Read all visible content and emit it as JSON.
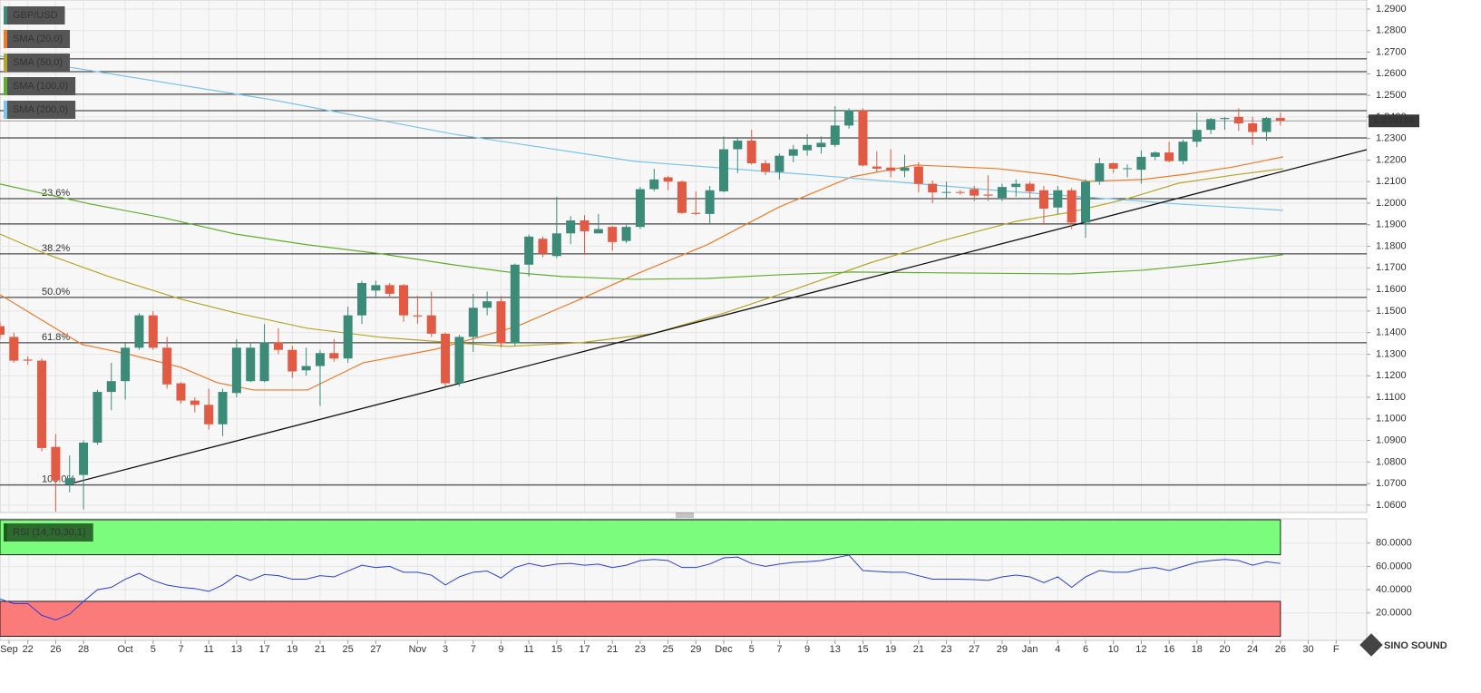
{
  "chart_data": {
    "type": "candlestick",
    "symbol": "GBP/USD",
    "up_color": "#3b8b78",
    "down_color": "#e15a43",
    "xlim": [
      0,
      98.2
    ],
    "ylim": [
      1.0566,
      1.2942
    ],
    "grid": true,
    "legend": "top-left",
    "xticks": [
      {
        "value": 0.65,
        "label": "Sep"
      },
      {
        "value": 2,
        "label": "22"
      },
      {
        "value": 4,
        "label": "26"
      },
      {
        "value": 6,
        "label": "28"
      },
      {
        "value": 9,
        "label": "Oct"
      },
      {
        "value": 11,
        "label": "5"
      },
      {
        "value": 13,
        "label": "7"
      },
      {
        "value": 15,
        "label": "11"
      },
      {
        "value": 17,
        "label": "13"
      },
      {
        "value": 19,
        "label": "17"
      },
      {
        "value": 21,
        "label": "19"
      },
      {
        "value": 23,
        "label": "21"
      },
      {
        "value": 25,
        "label": "25"
      },
      {
        "value": 27,
        "label": "27"
      },
      {
        "value": 30,
        "label": "Nov"
      },
      {
        "value": 32,
        "label": "3"
      },
      {
        "value": 34,
        "label": "7"
      },
      {
        "value": 36,
        "label": "9"
      },
      {
        "value": 38,
        "label": "11"
      },
      {
        "value": 40,
        "label": "15"
      },
      {
        "value": 42,
        "label": "17"
      },
      {
        "value": 44,
        "label": "21"
      },
      {
        "value": 46,
        "label": "23"
      },
      {
        "value": 48,
        "label": "25"
      },
      {
        "value": 50,
        "label": "29"
      },
      {
        "value": 52,
        "label": "Dec"
      },
      {
        "value": 54,
        "label": "5"
      },
      {
        "value": 56,
        "label": "7"
      },
      {
        "value": 58,
        "label": "9"
      },
      {
        "value": 60,
        "label": "13"
      },
      {
        "value": 62,
        "label": "15"
      },
      {
        "value": 64,
        "label": "19"
      },
      {
        "value": 66,
        "label": "21"
      },
      {
        "value": 68,
        "label": "23"
      },
      {
        "value": 70,
        "label": "27"
      },
      {
        "value": 72,
        "label": "29"
      },
      {
        "value": 74,
        "label": "Jan"
      },
      {
        "value": 76,
        "label": "4"
      },
      {
        "value": 78,
        "label": "6"
      },
      {
        "value": 80,
        "label": "10"
      },
      {
        "value": 82,
        "label": "12"
      },
      {
        "value": 84,
        "label": "16"
      },
      {
        "value": 86,
        "label": "18"
      },
      {
        "value": 88,
        "label": "20"
      },
      {
        "value": 90,
        "label": "24"
      },
      {
        "value": 92,
        "label": "26"
      },
      {
        "value": 94,
        "label": "30"
      },
      {
        "value": 96,
        "label": "F"
      }
    ],
    "yticks": [
      {
        "value": 1.06,
        "label": "1.0600"
      },
      {
        "value": 1.07,
        "label": "1.0700"
      },
      {
        "value": 1.08,
        "label": "1.0800"
      },
      {
        "value": 1.09,
        "label": "1.0900"
      },
      {
        "value": 1.1,
        "label": "1.1000"
      },
      {
        "value": 1.11,
        "label": "1.1100"
      },
      {
        "value": 1.12,
        "label": "1.1200"
      },
      {
        "value": 1.13,
        "label": "1.1300"
      },
      {
        "value": 1.14,
        "label": "1.1400"
      },
      {
        "value": 1.15,
        "label": "1.1500"
      },
      {
        "value": 1.16,
        "label": "1.1600"
      },
      {
        "value": 1.17,
        "label": "1.1700"
      },
      {
        "value": 1.18,
        "label": "1.1800"
      },
      {
        "value": 1.19,
        "label": "1.1900"
      },
      {
        "value": 1.2,
        "label": "1.2000"
      },
      {
        "value": 1.21,
        "label": "1.2100"
      },
      {
        "value": 1.22,
        "label": "1.2200"
      },
      {
        "value": 1.23,
        "label": "1.2300"
      },
      {
        "value": 1.24,
        "label": "1.2400"
      },
      {
        "value": 1.25,
        "label": "1.2500"
      },
      {
        "value": 1.26,
        "label": "1.2600"
      },
      {
        "value": 1.27,
        "label": "1.2700"
      },
      {
        "value": 1.28,
        "label": "1.2800"
      },
      {
        "value": 1.29,
        "label": "1.2900"
      }
    ],
    "candles": {
      "open": [
        1.143,
        1.138,
        1.1275,
        1.127,
        1.087,
        1.0695,
        1.074,
        1.089,
        1.1125,
        1.1175,
        1.133,
        1.148,
        1.133,
        1.1165,
        1.1085,
        1.1065,
        1.0975,
        1.112,
        1.1175,
        1.1175,
        1.1355,
        1.132,
        1.1225,
        1.1245,
        1.1305,
        1.128,
        1.148,
        1.1595,
        1.162,
        1.162,
        1.148,
        1.148,
        1.1395,
        1.1165,
        1.138,
        1.1515,
        1.1545,
        1.135,
        1.1715,
        1.1835,
        1.1755,
        1.186,
        1.192,
        1.186,
        1.189,
        1.1825,
        1.189,
        1.2065,
        1.212,
        1.21,
        1.1955,
        1.195,
        1.2055,
        1.225,
        1.229,
        1.2185,
        1.2145,
        1.222,
        1.2245,
        1.226,
        1.227,
        1.236,
        1.243,
        1.217,
        1.2165,
        1.215,
        1.217,
        1.209,
        1.205,
        1.2052,
        1.2065,
        1.204,
        1.2025,
        1.2075,
        1.209,
        1.206,
        1.198,
        1.206,
        1.191,
        1.21,
        1.2185,
        1.216,
        1.2155,
        1.2215,
        1.2235,
        1.2195,
        1.2285,
        1.234,
        1.239,
        1.24,
        1.237,
        1.233,
        1.2395
      ],
      "high": [
        1.145,
        1.14,
        1.129,
        1.128,
        1.093,
        1.083,
        1.09,
        1.1135,
        1.126,
        1.135,
        1.149,
        1.15,
        1.138,
        1.117,
        1.11,
        1.114,
        1.114,
        1.137,
        1.135,
        1.144,
        1.142,
        1.134,
        1.133,
        1.132,
        1.137,
        1.152,
        1.164,
        1.164,
        1.163,
        1.1625,
        1.157,
        1.159,
        1.14,
        1.139,
        1.158,
        1.159,
        1.157,
        1.172,
        1.1855,
        1.1845,
        1.203,
        1.194,
        1.1945,
        1.195,
        1.1895,
        1.19,
        1.2075,
        1.216,
        1.2125,
        1.2105,
        1.2055,
        1.208,
        1.231,
        1.23,
        1.234,
        1.22,
        1.223,
        1.227,
        1.232,
        1.231,
        1.245,
        1.244,
        1.244,
        1.224,
        1.225,
        1.2225,
        1.219,
        1.2105,
        1.21,
        1.206,
        1.208,
        1.213,
        1.209,
        1.211,
        1.21,
        1.208,
        1.208,
        1.207,
        1.211,
        1.221,
        1.219,
        1.218,
        1.2245,
        1.224,
        1.2285,
        1.2295,
        1.242,
        1.2395,
        1.24,
        1.244,
        1.24,
        1.24,
        1.242
      ],
      "low": [
        1.137,
        1.126,
        1.125,
        1.085,
        1.057,
        1.066,
        1.058,
        1.088,
        1.104,
        1.109,
        1.132,
        1.132,
        1.114,
        1.107,
        1.103,
        1.095,
        1.092,
        1.11,
        1.117,
        1.117,
        1.13,
        1.119,
        1.12,
        1.106,
        1.1265,
        1.126,
        1.144,
        1.156,
        1.156,
        1.145,
        1.144,
        1.138,
        1.115,
        1.115,
        1.131,
        1.148,
        1.133,
        1.134,
        1.166,
        1.175,
        1.1745,
        1.181,
        1.176,
        1.186,
        1.178,
        1.1815,
        1.188,
        1.2055,
        1.206,
        1.195,
        1.1945,
        1.19,
        1.205,
        1.214,
        1.218,
        1.213,
        1.211,
        1.219,
        1.222,
        1.223,
        1.226,
        1.2345,
        1.217,
        1.2145,
        1.212,
        1.212,
        1.205,
        1.2,
        1.202,
        1.204,
        1.201,
        1.201,
        1.201,
        1.203,
        1.202,
        1.19,
        1.195,
        1.188,
        1.184,
        1.2085,
        1.214,
        1.212,
        1.209,
        1.22,
        1.219,
        1.218,
        1.226,
        1.232,
        1.234,
        1.2335,
        1.227,
        1.229,
        1.236
      ],
      "close": [
        1.139,
        1.127,
        1.127,
        1.0865,
        1.0715,
        1.0725,
        1.089,
        1.1125,
        1.1175,
        1.133,
        1.148,
        1.133,
        1.116,
        1.1085,
        1.1065,
        1.0975,
        1.1125,
        1.133,
        1.133,
        1.1355,
        1.132,
        1.122,
        1.1245,
        1.1305,
        1.128,
        1.148,
        1.163,
        1.162,
        1.158,
        1.148,
        1.1475,
        1.1395,
        1.1165,
        1.138,
        1.1515,
        1.1545,
        1.135,
        1.1715,
        1.1845,
        1.1765,
        1.186,
        1.192,
        1.187,
        1.188,
        1.182,
        1.189,
        1.2065,
        1.211,
        1.21,
        1.1955,
        1.195,
        1.206,
        1.225,
        1.229,
        1.2185,
        1.2145,
        1.222,
        1.225,
        1.227,
        1.228,
        1.236,
        1.243,
        1.2175,
        1.216,
        1.215,
        1.2165,
        1.209,
        1.205,
        1.2052,
        1.205,
        1.2035,
        1.2035,
        1.2075,
        1.209,
        1.2055,
        1.1975,
        1.206,
        1.191,
        1.21,
        1.2185,
        1.216,
        1.2162,
        1.2215,
        1.2235,
        1.2195,
        1.2285,
        1.234,
        1.239,
        1.2395,
        1.237,
        1.233,
        1.2395,
        1.2382
      ]
    },
    "series": [
      {
        "name": "SMA (20,0)",
        "color": "#ef7a2a",
        "x": [
          0,
          5.9,
          9.1,
          13,
          15.6,
          18.2,
          22.1,
          26.1,
          31.3,
          37.1,
          41.7,
          45.6,
          50.8,
          56,
          61.2,
          65.8,
          71.7,
          75.6,
          78.2,
          82.1,
          85.3,
          88.6,
          92.2
        ],
        "values": [
          1.1576,
          1.1345,
          1.1302,
          1.1239,
          1.1168,
          1.1134,
          1.1134,
          1.126,
          1.1323,
          1.1428,
          1.1555,
          1.1668,
          1.1807,
          1.1983,
          1.2122,
          1.2177,
          1.216,
          1.2131,
          1.2101,
          1.211,
          1.2135,
          1.2168,
          1.2215
        ]
      },
      {
        "name": "SMA (50,0)",
        "color": "#b5a62a",
        "x": [
          0,
          3.3,
          7.8,
          13,
          16.9,
          22.1,
          27.4,
          32.6,
          36.5,
          41.7,
          46.9,
          52.1,
          57.3,
          62.5,
          67.8,
          73,
          76.9,
          80.8,
          84.7,
          88.6,
          92.2
        ],
        "values": [
          1.1857,
          1.1765,
          1.166,
          1.1555,
          1.1492,
          1.142,
          1.1378,
          1.1353,
          1.1336,
          1.1353,
          1.1395,
          1.1492,
          1.1605,
          1.1723,
          1.1828,
          1.1916,
          1.1958,
          1.2017,
          1.2093,
          1.213,
          1.216
        ]
      },
      {
        "name": "SMA (100,0)",
        "color": "#5fae2e",
        "x": [
          0,
          6.5,
          11.7,
          16.9,
          22.1,
          27.4,
          32.6,
          36.5,
          40.4,
          45.6,
          50.8,
          56,
          61.2,
          67.8,
          76.9,
          82.1,
          87.3,
          92.2
        ],
        "values": [
          1.2089,
          1.1996,
          1.1933,
          1.1857,
          1.1807,
          1.1765,
          1.1714,
          1.1681,
          1.166,
          1.1647,
          1.1651,
          1.1668,
          1.1681,
          1.1677,
          1.1672,
          1.1689,
          1.1723,
          1.1761
        ]
      },
      {
        "name": "SMA (200,0)",
        "color": "#7cc3ec",
        "x": [
          0,
          19.5,
          32.6,
          45.6,
          58.6,
          71.7,
          84.7,
          92.2
        ],
        "values": [
          1.2682,
          1.248,
          1.232,
          1.2194,
          1.213,
          1.2059,
          1.1996,
          1.1967
        ]
      }
    ],
    "trendline": {
      "color": "#111111",
      "x": [
        4.9,
        98.2
      ],
      "values": [
        1.0697,
        1.2248
      ]
    },
    "levels": [
      1.1904,
      1.2303,
      1.2429,
      1.2505,
      1.261,
      1.2669
    ],
    "fib_levels": [
      {
        "value": 1.2021,
        "label": "23.6%"
      },
      {
        "value": 1.1765,
        "label": "38.2%"
      },
      {
        "value": 1.1563,
        "label": "50.0%"
      },
      {
        "value": 1.1353,
        "label": "61.8%"
      },
      {
        "value": 1.0693,
        "label": "100.0%"
      }
    ],
    "last_price": {
      "value": 1.23816,
      "label": "1.238160"
    },
    "rsi": {
      "name": "RSI (14,70,30,1)",
      "color": "#2a3fd6",
      "ylim": [
        0,
        100
      ],
      "yticks": [
        {
          "value": 20,
          "label": "20.0000"
        },
        {
          "value": 40,
          "label": "40.0000"
        },
        {
          "value": 60,
          "label": "60.0000"
        },
        {
          "value": 80,
          "label": "80.0000"
        }
      ],
      "overbought": 70,
      "oversold": 30,
      "values": [
        32,
        28,
        28,
        18,
        14,
        19,
        30,
        40,
        42,
        49,
        54,
        48,
        44,
        42,
        41,
        38.5,
        44,
        52.5,
        48,
        53,
        52,
        49,
        49,
        52,
        51,
        56,
        61,
        59,
        60,
        55,
        55,
        52.5,
        44,
        51,
        55,
        56,
        50,
        59,
        62.5,
        60,
        62,
        62.5,
        61,
        62,
        59,
        61,
        65,
        66,
        65,
        59,
        59,
        62,
        67.3,
        68,
        62.5,
        60,
        62,
        63.4,
        64,
        65,
        67.3,
        69.6,
        56.4,
        55.6,
        55,
        55,
        52,
        49,
        49,
        49,
        48.6,
        48,
        51,
        52.5,
        51,
        46,
        51,
        42,
        51,
        56.4,
        55,
        55,
        58,
        59,
        56.4,
        60,
        63.4,
        65,
        66,
        65,
        61,
        64,
        62.5
      ]
    },
    "watermark": "SINO SOUND"
  }
}
